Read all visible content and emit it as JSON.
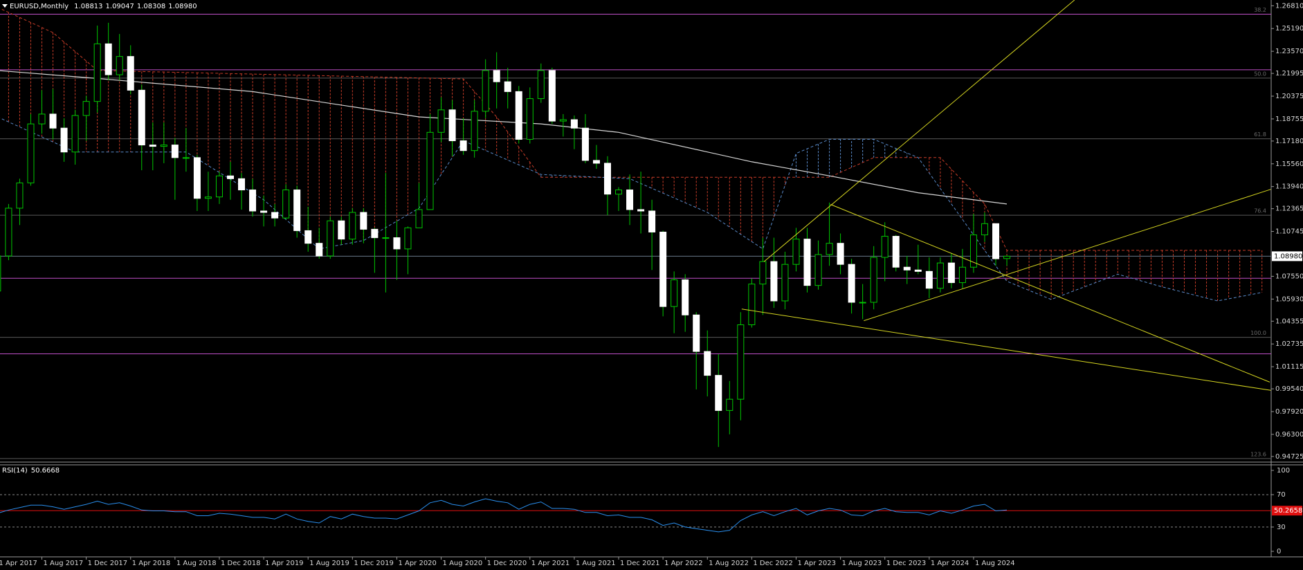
{
  "chart_data": {
    "type": "candlestick",
    "title": "EURUSD,Monthly",
    "quote": [
      "1.08813",
      "1.09047",
      "1.08308",
      "1.08980"
    ],
    "categories": [
      "1 Apr 2017",
      null,
      null,
      null,
      "1 Aug 2017",
      null,
      null,
      null,
      "1 Dec 2017",
      null,
      null,
      null,
      "1 Apr 2018",
      null,
      null,
      null,
      "1 Aug 2018",
      null,
      null,
      null,
      "1 Dec 2018",
      null,
      null,
      null,
      "1 Apr 2019",
      null,
      null,
      null,
      "1 Aug 2019",
      null,
      null,
      null,
      "1 Dec 2019",
      null,
      null,
      null,
      "1 Apr 2020",
      null,
      null,
      null,
      "1 Aug 2020",
      null,
      null,
      null,
      "1 Dec 2020",
      null,
      null,
      null,
      "1 Apr 2021",
      null,
      null,
      null,
      "1 Aug 2021",
      null,
      null,
      null,
      "1 Dec 2021",
      null,
      null,
      null,
      "1 Apr 2022",
      null,
      null,
      null,
      "1 Aug 2022",
      null,
      null,
      null,
      "1 Dec 2022",
      null,
      null,
      null,
      "1 Apr 2023",
      null,
      null,
      null,
      "1 Aug 2023",
      null,
      null,
      null,
      "1 Dec 2023",
      null,
      null,
      null,
      "1 Apr 2024",
      null,
      null,
      null,
      "1 Aug 2024",
      null,
      null,
      null
    ],
    "open": [
      1.065,
      1.09,
      1.124,
      1.142,
      1.184,
      1.191,
      1.181,
      1.164,
      1.19,
      1.2,
      1.241,
      1.219,
      1.232,
      1.208,
      1.169,
      1.168,
      1.169,
      1.16,
      1.16,
      1.131,
      1.132,
      1.147,
      1.145,
      1.137,
      1.122,
      1.121,
      1.117,
      1.137,
      1.108,
      1.099,
      1.09,
      1.115,
      1.102,
      1.121,
      1.109,
      1.103,
      1.103,
      1.095,
      1.11,
      1.123,
      1.178,
      1.194,
      1.172,
      1.165,
      1.193,
      1.222,
      1.214,
      1.207,
      1.173,
      1.202,
      1.222,
      1.186,
      1.187,
      1.181,
      1.158,
      1.156,
      1.134,
      1.137,
      1.123,
      1.122,
      1.107,
      1.054,
      1.073,
      1.048,
      1.022,
      1.005,
      0.98,
      0.988,
      1.041,
      1.07,
      1.086,
      1.058,
      1.084,
      1.102,
      1.069,
      1.091,
      1.099,
      1.084,
      1.057,
      1.057,
      1.089,
      1.104,
      1.082,
      1.08,
      1.079,
      1.067,
      1.085,
      1.071,
      1.082,
      1.105,
      1.113,
      1.08813
    ],
    "high": [
      1.098,
      1.127,
      1.145,
      1.191,
      1.208,
      1.209,
      1.188,
      1.194,
      1.204,
      1.254,
      1.256,
      1.248,
      1.24,
      1.212,
      1.185,
      1.185,
      1.174,
      1.181,
      1.162,
      1.15,
      1.15,
      1.157,
      1.149,
      1.145,
      1.133,
      1.127,
      1.141,
      1.14,
      1.125,
      1.11,
      1.118,
      1.118,
      1.124,
      1.124,
      1.11,
      1.149,
      1.115,
      1.111,
      1.142,
      1.191,
      1.203,
      1.201,
      1.188,
      1.201,
      1.23,
      1.235,
      1.224,
      1.211,
      1.21,
      1.227,
      1.224,
      1.191,
      1.19,
      1.191,
      1.169,
      1.161,
      1.139,
      1.148,
      1.15,
      1.13,
      1.108,
      1.079,
      1.077,
      1.05,
      1.037,
      1.02,
      1.001,
      1.05,
      1.074,
      1.103,
      1.103,
      1.093,
      1.11,
      1.11,
      1.101,
      1.128,
      1.106,
      1.088,
      1.07,
      1.097,
      1.114,
      1.105,
      1.09,
      1.098,
      1.089,
      1.089,
      1.092,
      1.095,
      1.12,
      1.121,
      1.113,
      1.09047
    ],
    "low": [
      1.06,
      1.087,
      1.112,
      1.14,
      1.177,
      1.173,
      1.157,
      1.155,
      1.172,
      1.192,
      1.215,
      1.215,
      1.205,
      1.151,
      1.151,
      1.156,
      1.13,
      1.15,
      1.122,
      1.122,
      1.127,
      1.13,
      1.123,
      1.118,
      1.111,
      1.111,
      1.116,
      1.103,
      1.093,
      1.088,
      1.088,
      1.098,
      1.098,
      1.099,
      1.078,
      1.064,
      1.073,
      1.077,
      1.11,
      1.123,
      1.171,
      1.161,
      1.162,
      1.16,
      1.188,
      1.195,
      1.195,
      1.17,
      1.17,
      1.199,
      1.184,
      1.175,
      1.166,
      1.156,
      1.152,
      1.119,
      1.122,
      1.112,
      1.106,
      1.08,
      1.047,
      1.035,
      1.036,
      0.995,
      0.99,
      0.954,
      0.963,
      0.973,
      1.039,
      1.048,
      1.053,
      1.052,
      1.079,
      1.064,
      1.066,
      1.083,
      1.077,
      1.049,
      1.045,
      1.052,
      1.072,
      1.079,
      1.07,
      1.077,
      1.06,
      1.064,
      1.067,
      1.067,
      1.078,
      1.1,
      1.083,
      1.08308
    ],
    "close": [
      1.09,
      1.124,
      1.142,
      1.184,
      1.191,
      1.181,
      1.164,
      1.19,
      1.2,
      1.241,
      1.219,
      1.232,
      1.208,
      1.169,
      1.168,
      1.169,
      1.16,
      1.16,
      1.131,
      1.132,
      1.147,
      1.145,
      1.137,
      1.122,
      1.121,
      1.117,
      1.137,
      1.108,
      1.099,
      1.09,
      1.115,
      1.102,
      1.121,
      1.109,
      1.103,
      1.103,
      1.095,
      1.11,
      1.123,
      1.178,
      1.194,
      1.172,
      1.165,
      1.193,
      1.222,
      1.214,
      1.207,
      1.173,
      1.202,
      1.222,
      1.186,
      1.187,
      1.181,
      1.158,
      1.156,
      1.134,
      1.137,
      1.123,
      1.122,
      1.107,
      1.054,
      1.073,
      1.048,
      1.022,
      1.005,
      0.98,
      0.988,
      1.041,
      1.07,
      1.086,
      1.058,
      1.084,
      1.102,
      1.069,
      1.091,
      1.099,
      1.084,
      1.057,
      1.057,
      1.089,
      1.104,
      1.082,
      1.08,
      1.079,
      1.067,
      1.085,
      1.071,
      1.082,
      1.105,
      1.113,
      1.088,
      1.0898
    ],
    "up_color": "#00c800",
    "down_color": "#ffffff",
    "xlim": [
      0.2247,
      114.83
    ],
    "ylim": [
      0.9467,
      1.2722
    ],
    "yticks": [
      {
        "value": 1.2681,
        "label": "1.26810"
      },
      {
        "value": 1.2519,
        "label": "1.25190"
      },
      {
        "value": 1.2357,
        "label": "1.23570"
      },
      1.21995,
      1.20375,
      1.18755,
      {
        "value": 1.1718,
        "label": "1.17180"
      },
      {
        "value": 1.1556,
        "label": "1.15560"
      },
      {
        "value": 1.1394,
        "label": "1.13940"
      },
      1.12365,
      1.10745,
      {
        "value": 1.0755,
        "label": "1.07550"
      },
      {
        "value": 1.0593,
        "label": "1.05930"
      },
      1.04355,
      1.02735,
      1.01115,
      {
        "value": 0.9954,
        "label": "0.99540"
      },
      {
        "value": 0.9792,
        "label": "0.97920"
      },
      {
        "value": 0.963,
        "label": "0.96300"
      },
      0.94725
    ],
    "grid": false,
    "current_price": {
      "value": 1.0898,
      "label": "1.08980"
    },
    "hlines": [
      1.2621,
      1.2225,
      1.0741,
      1.0203
    ],
    "hline_color": "#c050c8",
    "fib_levels": [
      {
        "value": 1.2621,
        "label": "38.2"
      },
      {
        "value": 1.2166,
        "label": "50.0"
      },
      {
        "value": 1.1734,
        "label": "61.8"
      },
      {
        "value": 1.119,
        "label": "76.4"
      },
      {
        "value": 1.0321,
        "label": "100.0"
      },
      {
        "value": 0.9458,
        "label": "123.6"
      }
    ],
    "fib_color": "#5a5a5a",
    "moving_average": {
      "color": "#d8d8d8",
      "x": [
        0,
        8,
        23,
        38,
        49,
        56,
        68,
        75,
        83,
        91
      ],
      "values": [
        1.222,
        1.217,
        1.207,
        1.189,
        1.184,
        1.178,
        1.157,
        1.147,
        1.135,
        1.127
      ]
    },
    "cloud": [
      {
        "color": "#c83c28",
        "x": [
          0,
          5,
          9,
          42,
          45,
          49,
          75,
          79,
          85,
          89,
          91,
          114
        ],
        "values": [
          1.267,
          1.249,
          1.222,
          1.216,
          1.189,
          1.146,
          1.146,
          1.16,
          1.16,
          1.127,
          1.094,
          1.094
        ]
      },
      {
        "color": "#5a8ccc",
        "x": [
          0,
          7,
          17,
          24,
          29,
          33,
          38,
          42,
          49,
          57,
          64,
          69,
          72,
          75,
          79,
          83,
          86,
          91,
          95,
          101,
          105,
          110,
          114
        ],
        "values": [
          1.189,
          1.164,
          1.164,
          1.13,
          1.095,
          1.101,
          1.124,
          1.172,
          1.148,
          1.145,
          1.121,
          1.095,
          1.163,
          1.173,
          1.173,
          1.16,
          1.127,
          1.072,
          1.059,
          1.077,
          1.068,
          1.058,
          1.064
        ]
      }
    ],
    "trendline_color": "#d8d820",
    "trendlines": [
      {
        "x": [
          69.1,
          97.1
        ],
        "values": [
          1.0859,
          1.2722
        ]
      },
      {
        "x": [
          75.1,
          114.7
        ],
        "values": [
          1.1267,
          1.0002
        ]
      },
      {
        "x": [
          78.1,
          114.8
        ],
        "values": [
          1.0439,
          1.1374
        ]
      },
      {
        "x": [
          67.1,
          114.8
        ],
        "values": [
          1.0522,
          0.9943
        ]
      }
    ],
    "rsi": {
      "title": "RSI(14)",
      "current": 50.6668,
      "color": "#2a90f0",
      "ylim": [
        0,
        100
      ],
      "yticks": [
        0,
        30,
        70,
        100
      ],
      "levels": [
        30,
        70
      ],
      "marker": 50.2658,
      "marker_color": "#e01010",
      "values": [
        47,
        51,
        54,
        57,
        57,
        55,
        52,
        55,
        58,
        62,
        58,
        60,
        56,
        51,
        50,
        50,
        49,
        49,
        44,
        44,
        47,
        46,
        44,
        42,
        42,
        40,
        46,
        40,
        37,
        35,
        43,
        40,
        46,
        43,
        41,
        41,
        40,
        45,
        50,
        60,
        63,
        58,
        56,
        61,
        65,
        62,
        60,
        52,
        58,
        61,
        53,
        53,
        52,
        48,
        48,
        44,
        45,
        42,
        42,
        39,
        32,
        35,
        30,
        28,
        26,
        24,
        26,
        38,
        45,
        49,
        44,
        49,
        53,
        45,
        50,
        53,
        51,
        45,
        44,
        50,
        53,
        49,
        48,
        48,
        45,
        50,
        47,
        51,
        56,
        58,
        50,
        51
      ]
    }
  }
}
